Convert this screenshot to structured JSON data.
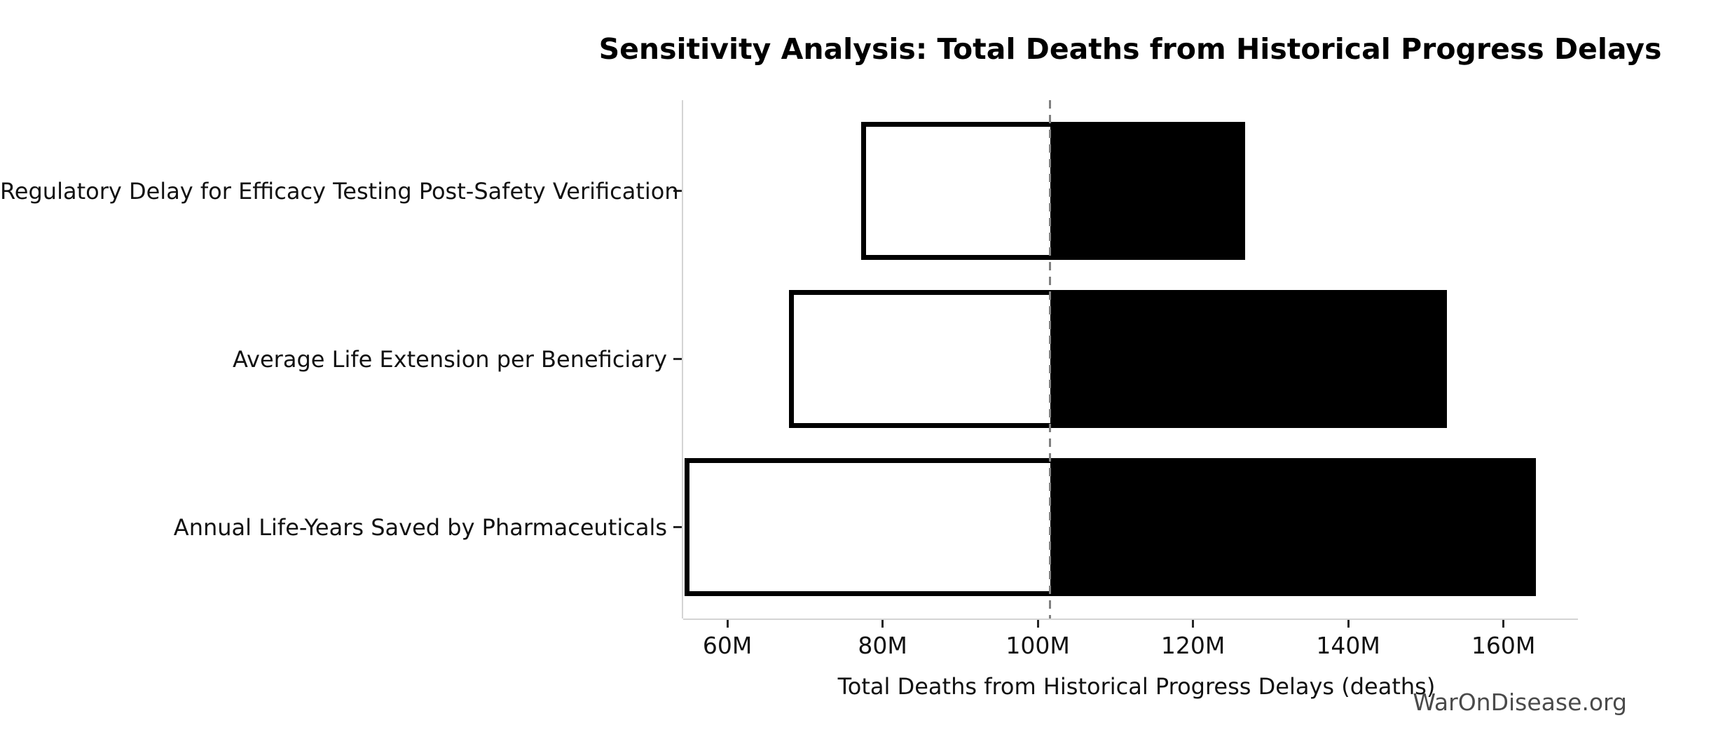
{
  "title": "Sensitivity Analysis: Total Deaths from Historical Progress Delays",
  "watermark": "WarOnDisease.org",
  "chart_data": {
    "type": "bar",
    "subtype": "tornado",
    "orientation": "horizontal",
    "title": "Sensitivity Analysis: Total Deaths from Historical Progress Delays",
    "xlabel": "Total Deaths from Historical Progress Delays (deaths)",
    "ylabel": "",
    "unit": "M",
    "categories": [
      "Regulatory Delay for Efficacy Testing Post-Safety Verification",
      "Average Life Extension per Beneficiary",
      "Annual Life-Years Saved by Pharmaceuticals"
    ],
    "series": [
      {
        "name": "low",
        "values": [
          77.2,
          67.9,
          54.5
        ]
      },
      {
        "name": "high",
        "values": [
          126.7,
          152.7,
          164.2
        ]
      }
    ],
    "baseline": 101.6,
    "xlim": [
      54.3,
      169.6
    ],
    "xticks": [
      60,
      80,
      100,
      120,
      140,
      160
    ],
    "xtick_labels": [
      "60M",
      "80M",
      "100M",
      "120M",
      "140M",
      "160M"
    ],
    "grid": false,
    "legend": "none",
    "colors": {
      "bar_fill_low": "#ffffff",
      "bar_fill_high": "#000000",
      "bar_border": "#000000",
      "baseline_line": "#808080",
      "spine": "#d4d4d4",
      "tick": "#262626",
      "text": "#111111",
      "watermark_text": "#4a4a4a"
    }
  }
}
